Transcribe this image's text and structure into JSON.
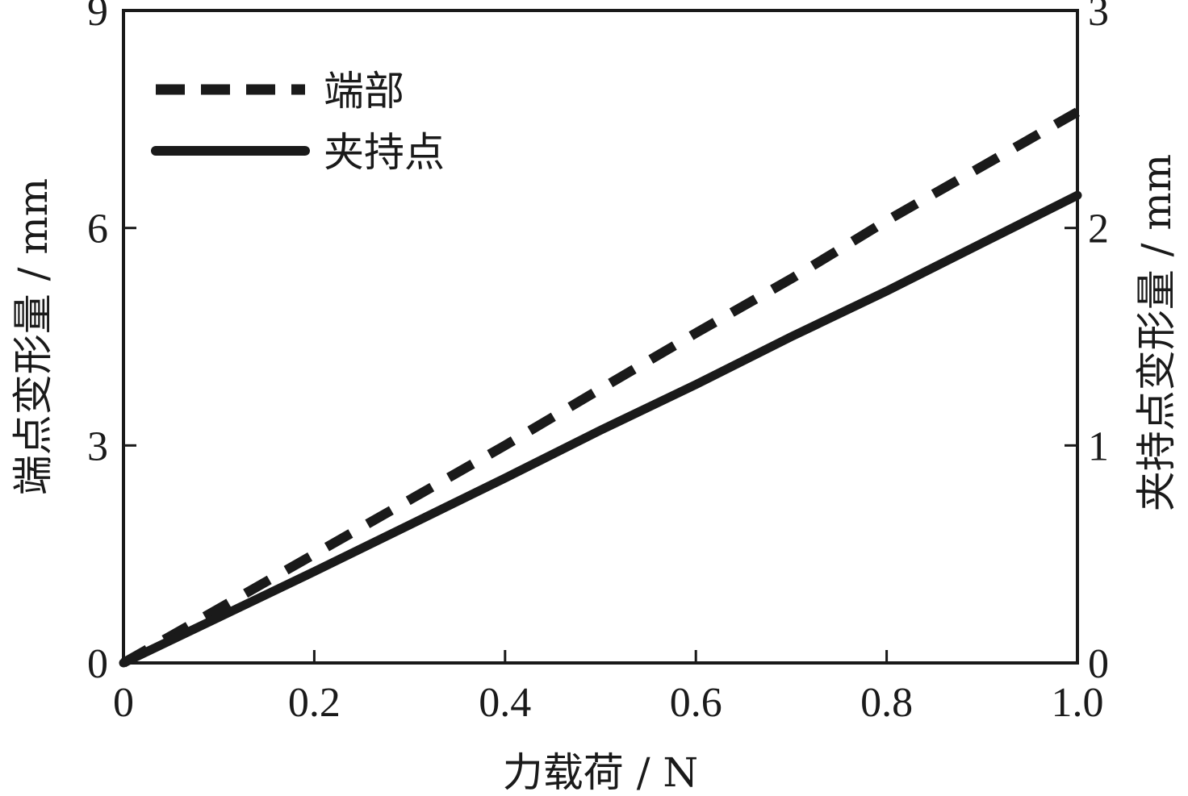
{
  "chart_data": {
    "type": "line",
    "x_axis": {
      "label": "力载荷 / N",
      "range": [
        0,
        1.0
      ],
      "ticks": [
        0,
        0.2,
        0.4,
        0.6,
        0.8,
        1.0
      ],
      "tick_labels": [
        "0",
        "0.2",
        "0.4",
        "0.6",
        "0.8",
        "1.0"
      ]
    },
    "y_left": {
      "label": "端点变形量 / mm",
      "range": [
        0,
        9
      ],
      "ticks": [
        0,
        3,
        6,
        9
      ],
      "tick_labels": [
        "0",
        "3",
        "6",
        "9"
      ]
    },
    "y_right": {
      "label": "夹持点变形量 / mm",
      "range": [
        0,
        3
      ],
      "ticks": [
        0,
        1,
        2,
        3
      ],
      "tick_labels": [
        "0",
        "1",
        "2",
        "3"
      ]
    },
    "grid": false,
    "legend": {
      "placement": "top-left",
      "entries": [
        {
          "name": "端部",
          "style": "dashed"
        },
        {
          "name": "夹持点",
          "style": "solid"
        }
      ]
    },
    "series": [
      {
        "name": "端部",
        "axis": "left",
        "style": "dashed",
        "color": "#1a1a1a",
        "x": [
          0,
          0.1,
          0.2,
          0.3,
          0.4,
          0.5,
          0.6,
          0.7,
          0.8,
          0.9,
          1.0
        ],
        "y": [
          0,
          0.75,
          1.5,
          2.25,
          3.0,
          3.78,
          4.55,
          5.3,
          6.1,
          6.85,
          7.6
        ]
      },
      {
        "name": "夹持点",
        "axis": "right",
        "style": "solid",
        "color": "#1a1a1a",
        "x": [
          0,
          0.1,
          0.2,
          0.3,
          0.4,
          0.5,
          0.6,
          0.7,
          0.8,
          0.9,
          1.0
        ],
        "y": [
          0,
          0.21,
          0.42,
          0.635,
          0.85,
          1.07,
          1.28,
          1.5,
          1.71,
          1.93,
          2.15
        ]
      }
    ]
  }
}
